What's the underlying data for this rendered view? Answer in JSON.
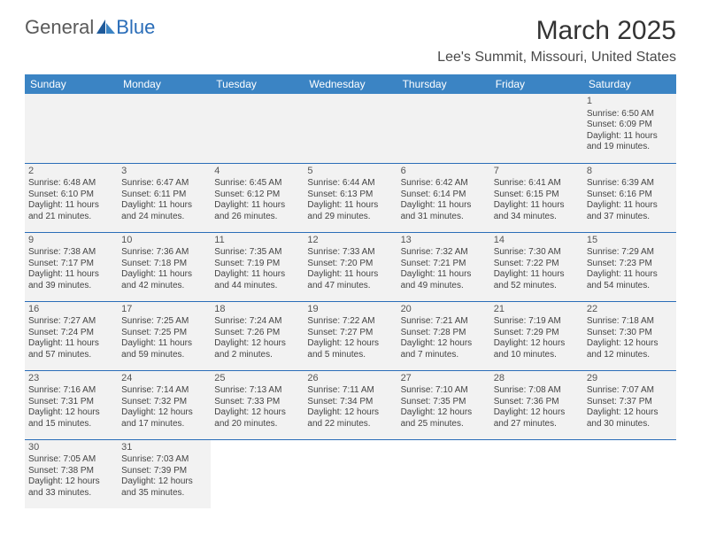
{
  "logo": {
    "part1": "General",
    "part2": "Blue"
  },
  "header": {
    "month_title": "March 2025",
    "location": "Lee's Summit, Missouri, United States"
  },
  "colors": {
    "header_bg": "#3b84c4",
    "header_text": "#ffffff",
    "cell_bg": "#f2f2f2",
    "cell_border": "#2a6db8",
    "logo_accent": "#2a6db8"
  },
  "weekdays": [
    "Sunday",
    "Monday",
    "Tuesday",
    "Wednesday",
    "Thursday",
    "Friday",
    "Saturday"
  ],
  "weeks": [
    [
      null,
      null,
      null,
      null,
      null,
      null,
      {
        "n": "1",
        "sr": "Sunrise: 6:50 AM",
        "ss": "Sunset: 6:09 PM",
        "d1": "Daylight: 11 hours",
        "d2": "and 19 minutes."
      }
    ],
    [
      {
        "n": "2",
        "sr": "Sunrise: 6:48 AM",
        "ss": "Sunset: 6:10 PM",
        "d1": "Daylight: 11 hours",
        "d2": "and 21 minutes."
      },
      {
        "n": "3",
        "sr": "Sunrise: 6:47 AM",
        "ss": "Sunset: 6:11 PM",
        "d1": "Daylight: 11 hours",
        "d2": "and 24 minutes."
      },
      {
        "n": "4",
        "sr": "Sunrise: 6:45 AM",
        "ss": "Sunset: 6:12 PM",
        "d1": "Daylight: 11 hours",
        "d2": "and 26 minutes."
      },
      {
        "n": "5",
        "sr": "Sunrise: 6:44 AM",
        "ss": "Sunset: 6:13 PM",
        "d1": "Daylight: 11 hours",
        "d2": "and 29 minutes."
      },
      {
        "n": "6",
        "sr": "Sunrise: 6:42 AM",
        "ss": "Sunset: 6:14 PM",
        "d1": "Daylight: 11 hours",
        "d2": "and 31 minutes."
      },
      {
        "n": "7",
        "sr": "Sunrise: 6:41 AM",
        "ss": "Sunset: 6:15 PM",
        "d1": "Daylight: 11 hours",
        "d2": "and 34 minutes."
      },
      {
        "n": "8",
        "sr": "Sunrise: 6:39 AM",
        "ss": "Sunset: 6:16 PM",
        "d1": "Daylight: 11 hours",
        "d2": "and 37 minutes."
      }
    ],
    [
      {
        "n": "9",
        "sr": "Sunrise: 7:38 AM",
        "ss": "Sunset: 7:17 PM",
        "d1": "Daylight: 11 hours",
        "d2": "and 39 minutes."
      },
      {
        "n": "10",
        "sr": "Sunrise: 7:36 AM",
        "ss": "Sunset: 7:18 PM",
        "d1": "Daylight: 11 hours",
        "d2": "and 42 minutes."
      },
      {
        "n": "11",
        "sr": "Sunrise: 7:35 AM",
        "ss": "Sunset: 7:19 PM",
        "d1": "Daylight: 11 hours",
        "d2": "and 44 minutes."
      },
      {
        "n": "12",
        "sr": "Sunrise: 7:33 AM",
        "ss": "Sunset: 7:20 PM",
        "d1": "Daylight: 11 hours",
        "d2": "and 47 minutes."
      },
      {
        "n": "13",
        "sr": "Sunrise: 7:32 AM",
        "ss": "Sunset: 7:21 PM",
        "d1": "Daylight: 11 hours",
        "d2": "and 49 minutes."
      },
      {
        "n": "14",
        "sr": "Sunrise: 7:30 AM",
        "ss": "Sunset: 7:22 PM",
        "d1": "Daylight: 11 hours",
        "d2": "and 52 minutes."
      },
      {
        "n": "15",
        "sr": "Sunrise: 7:29 AM",
        "ss": "Sunset: 7:23 PM",
        "d1": "Daylight: 11 hours",
        "d2": "and 54 minutes."
      }
    ],
    [
      {
        "n": "16",
        "sr": "Sunrise: 7:27 AM",
        "ss": "Sunset: 7:24 PM",
        "d1": "Daylight: 11 hours",
        "d2": "and 57 minutes."
      },
      {
        "n": "17",
        "sr": "Sunrise: 7:25 AM",
        "ss": "Sunset: 7:25 PM",
        "d1": "Daylight: 11 hours",
        "d2": "and 59 minutes."
      },
      {
        "n": "18",
        "sr": "Sunrise: 7:24 AM",
        "ss": "Sunset: 7:26 PM",
        "d1": "Daylight: 12 hours",
        "d2": "and 2 minutes."
      },
      {
        "n": "19",
        "sr": "Sunrise: 7:22 AM",
        "ss": "Sunset: 7:27 PM",
        "d1": "Daylight: 12 hours",
        "d2": "and 5 minutes."
      },
      {
        "n": "20",
        "sr": "Sunrise: 7:21 AM",
        "ss": "Sunset: 7:28 PM",
        "d1": "Daylight: 12 hours",
        "d2": "and 7 minutes."
      },
      {
        "n": "21",
        "sr": "Sunrise: 7:19 AM",
        "ss": "Sunset: 7:29 PM",
        "d1": "Daylight: 12 hours",
        "d2": "and 10 minutes."
      },
      {
        "n": "22",
        "sr": "Sunrise: 7:18 AM",
        "ss": "Sunset: 7:30 PM",
        "d1": "Daylight: 12 hours",
        "d2": "and 12 minutes."
      }
    ],
    [
      {
        "n": "23",
        "sr": "Sunrise: 7:16 AM",
        "ss": "Sunset: 7:31 PM",
        "d1": "Daylight: 12 hours",
        "d2": "and 15 minutes."
      },
      {
        "n": "24",
        "sr": "Sunrise: 7:14 AM",
        "ss": "Sunset: 7:32 PM",
        "d1": "Daylight: 12 hours",
        "d2": "and 17 minutes."
      },
      {
        "n": "25",
        "sr": "Sunrise: 7:13 AM",
        "ss": "Sunset: 7:33 PM",
        "d1": "Daylight: 12 hours",
        "d2": "and 20 minutes."
      },
      {
        "n": "26",
        "sr": "Sunrise: 7:11 AM",
        "ss": "Sunset: 7:34 PM",
        "d1": "Daylight: 12 hours",
        "d2": "and 22 minutes."
      },
      {
        "n": "27",
        "sr": "Sunrise: 7:10 AM",
        "ss": "Sunset: 7:35 PM",
        "d1": "Daylight: 12 hours",
        "d2": "and 25 minutes."
      },
      {
        "n": "28",
        "sr": "Sunrise: 7:08 AM",
        "ss": "Sunset: 7:36 PM",
        "d1": "Daylight: 12 hours",
        "d2": "and 27 minutes."
      },
      {
        "n": "29",
        "sr": "Sunrise: 7:07 AM",
        "ss": "Sunset: 7:37 PM",
        "d1": "Daylight: 12 hours",
        "d2": "and 30 minutes."
      }
    ],
    [
      {
        "n": "30",
        "sr": "Sunrise: 7:05 AM",
        "ss": "Sunset: 7:38 PM",
        "d1": "Daylight: 12 hours",
        "d2": "and 33 minutes."
      },
      {
        "n": "31",
        "sr": "Sunrise: 7:03 AM",
        "ss": "Sunset: 7:39 PM",
        "d1": "Daylight: 12 hours",
        "d2": "and 35 minutes."
      },
      "blank",
      "blank",
      "blank",
      "blank",
      "blank"
    ]
  ]
}
